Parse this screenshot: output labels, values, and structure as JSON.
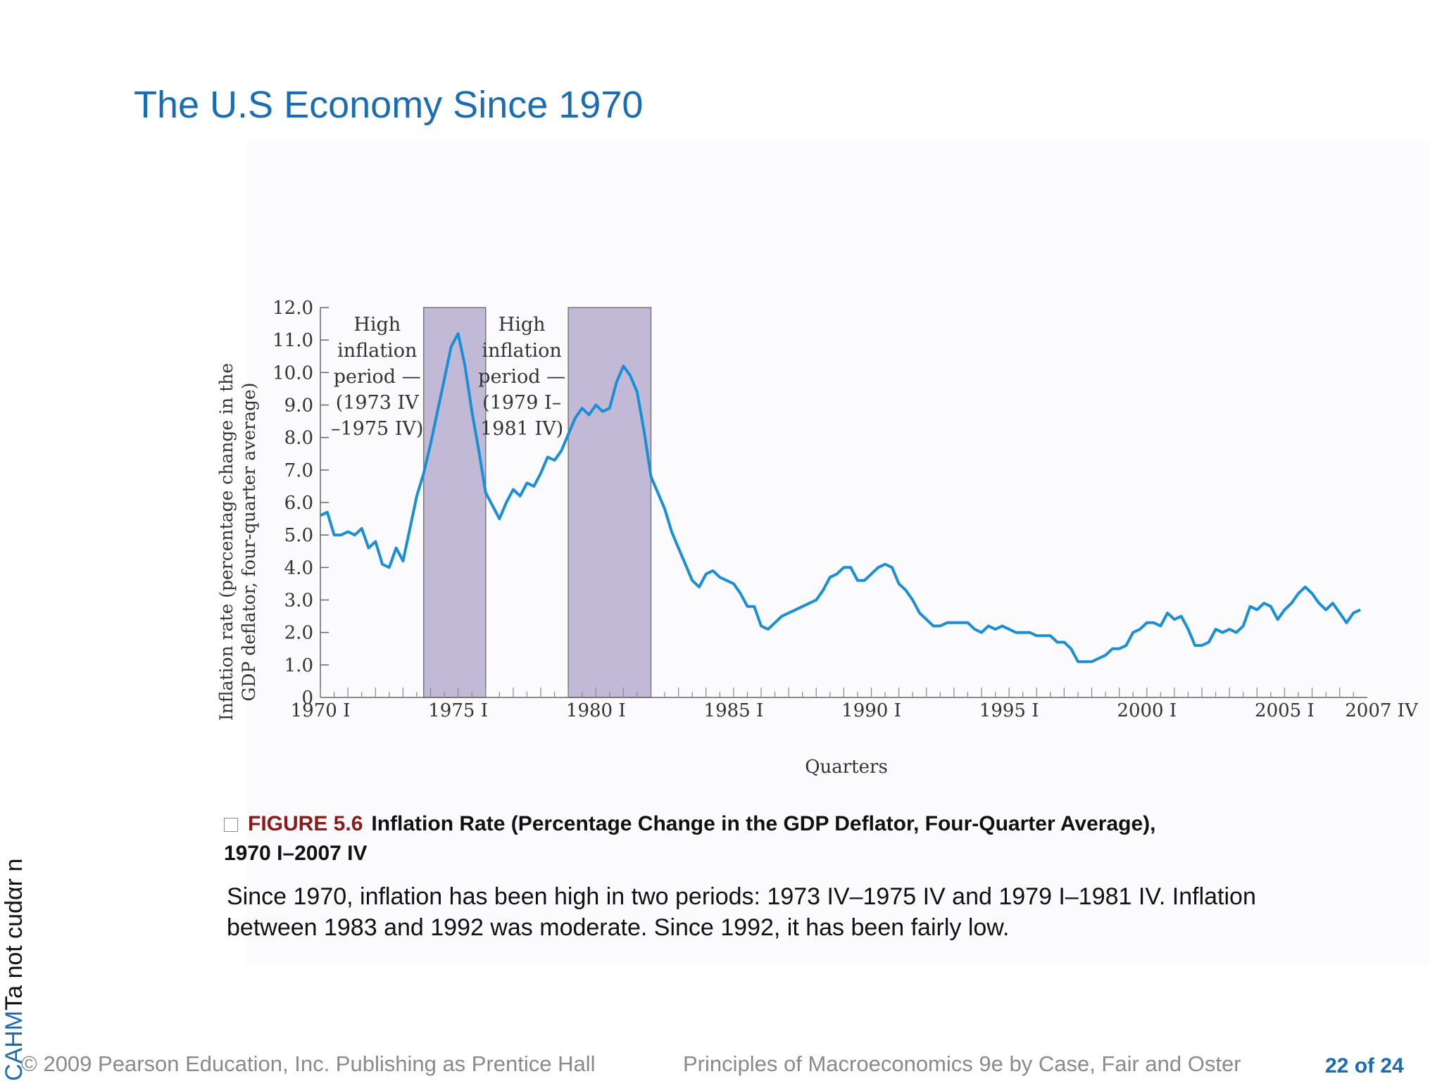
{
  "slide": {
    "title": "The U.S Economy Since 1970"
  },
  "caption": {
    "figure_number": "FIGURE 5.6",
    "figure_title": "Inflation Rate (Percentage Change in the GDP Deflator, Four-Quarter Average),",
    "figure_title_line2": "1970 I–2007 IV",
    "description_line1": "Since 1970, inflation has been high in two periods: 1973 IV–1975 IV and 1979 I–1981 IV. Inflation",
    "description_line2": "between 1983 and 1992 was moderate. Since 1992, it has been fairly low."
  },
  "sidebar": {
    "text_blue": "CAHM",
    "text_black": "Ta  not cudαr n"
  },
  "footer": {
    "copyright": "© 2009 Pearson Education, Inc. Publishing as Prentice Hall",
    "book": "Principles of Macroeconomics 9e by Case, Fair and Oster",
    "page": "22 of 24"
  },
  "colors": {
    "title": "#1a6cb3",
    "line": "#1a8fd6",
    "shade": "#c2b9d6",
    "figure_number": "#8b1a1a"
  },
  "chart_data": {
    "type": "line",
    "xlabel": "Quarters",
    "ylabel_line1": "Inflation rate (percentage change in the",
    "ylabel_line2": "GDP deflator, four-quarter average)",
    "ylim": [
      0,
      12
    ],
    "xlim": [
      1970.0,
      2007.75
    ],
    "y_ticks": [
      "0",
      "1.0",
      "2.0",
      "3.0",
      "4.0",
      "5.0",
      "6.0",
      "7.0",
      "8.0",
      "9.0",
      "10.0",
      "11.0",
      "12.0"
    ],
    "x_ticks": [
      {
        "value": 1970.0,
        "label": "1970 I"
      },
      {
        "value": 1975.0,
        "label": "1975 I"
      },
      {
        "value": 1980.0,
        "label": "1980 I"
      },
      {
        "value": 1985.0,
        "label": "1985 I"
      },
      {
        "value": 1990.0,
        "label": "1990 I"
      },
      {
        "value": 1995.0,
        "label": "1995 I"
      },
      {
        "value": 2000.0,
        "label": "2000 I"
      },
      {
        "value": 2005.0,
        "label": "2005 I"
      },
      {
        "value": 2007.75,
        "label": "2007 IV"
      }
    ],
    "shaded_periods": [
      {
        "start": 1973.75,
        "end": 1976.0,
        "label": [
          "High",
          "inflation",
          "period —",
          "(1973 IV",
          "–1975 IV)"
        ]
      },
      {
        "start": 1979.0,
        "end": 1982.0,
        "label": [
          "High",
          "inflation",
          "period —",
          "(1979 I–",
          "1981 IV)"
        ]
      }
    ],
    "series": [
      {
        "values": [
          [
            1970.0,
            5.6
          ],
          [
            1970.25,
            5.7
          ],
          [
            1970.5,
            5.0
          ],
          [
            1970.75,
            5.0
          ],
          [
            1971.0,
            5.1
          ],
          [
            1971.25,
            5.0
          ],
          [
            1971.5,
            5.2
          ],
          [
            1971.75,
            4.6
          ],
          [
            1972.0,
            4.8
          ],
          [
            1972.25,
            4.1
          ],
          [
            1972.5,
            4.0
          ],
          [
            1972.75,
            4.6
          ],
          [
            1973.0,
            4.2
          ],
          [
            1973.25,
            5.2
          ],
          [
            1973.5,
            6.2
          ],
          [
            1973.75,
            6.9
          ],
          [
            1974.0,
            7.8
          ],
          [
            1974.25,
            8.8
          ],
          [
            1974.5,
            9.8
          ],
          [
            1974.75,
            10.8
          ],
          [
            1975.0,
            11.2
          ],
          [
            1975.25,
            10.2
          ],
          [
            1975.5,
            8.8
          ],
          [
            1975.75,
            7.6
          ],
          [
            1976.0,
            6.3
          ],
          [
            1976.25,
            5.9
          ],
          [
            1976.5,
            5.5
          ],
          [
            1976.75,
            6.0
          ],
          [
            1977.0,
            6.4
          ],
          [
            1977.25,
            6.2
          ],
          [
            1977.5,
            6.6
          ],
          [
            1977.75,
            6.5
          ],
          [
            1978.0,
            6.9
          ],
          [
            1978.25,
            7.4
          ],
          [
            1978.5,
            7.3
          ],
          [
            1978.75,
            7.6
          ],
          [
            1979.0,
            8.1
          ],
          [
            1979.25,
            8.6
          ],
          [
            1979.5,
            8.9
          ],
          [
            1979.75,
            8.7
          ],
          [
            1980.0,
            9.0
          ],
          [
            1980.25,
            8.8
          ],
          [
            1980.5,
            8.9
          ],
          [
            1980.75,
            9.7
          ],
          [
            1981.0,
            10.2
          ],
          [
            1981.25,
            9.9
          ],
          [
            1981.5,
            9.4
          ],
          [
            1981.75,
            8.2
          ],
          [
            1982.0,
            6.8
          ],
          [
            1982.25,
            6.3
          ],
          [
            1982.5,
            5.8
          ],
          [
            1982.75,
            5.1
          ],
          [
            1983.0,
            4.6
          ],
          [
            1983.25,
            4.1
          ],
          [
            1983.5,
            3.6
          ],
          [
            1983.75,
            3.4
          ],
          [
            1984.0,
            3.8
          ],
          [
            1984.25,
            3.9
          ],
          [
            1984.5,
            3.7
          ],
          [
            1984.75,
            3.6
          ],
          [
            1985.0,
            3.5
          ],
          [
            1985.25,
            3.2
          ],
          [
            1985.5,
            2.8
          ],
          [
            1985.75,
            2.8
          ],
          [
            1986.0,
            2.2
          ],
          [
            1986.25,
            2.1
          ],
          [
            1986.5,
            2.3
          ],
          [
            1986.75,
            2.5
          ],
          [
            1987.0,
            2.6
          ],
          [
            1987.25,
            2.7
          ],
          [
            1987.5,
            2.8
          ],
          [
            1987.75,
            2.9
          ],
          [
            1988.0,
            3.0
          ],
          [
            1988.25,
            3.3
          ],
          [
            1988.5,
            3.7
          ],
          [
            1988.75,
            3.8
          ],
          [
            1989.0,
            4.0
          ],
          [
            1989.25,
            4.0
          ],
          [
            1989.5,
            3.6
          ],
          [
            1989.75,
            3.6
          ],
          [
            1990.0,
            3.8
          ],
          [
            1990.25,
            4.0
          ],
          [
            1990.5,
            4.1
          ],
          [
            1990.75,
            4.0
          ],
          [
            1991.0,
            3.5
          ],
          [
            1991.25,
            3.3
          ],
          [
            1991.5,
            3.0
          ],
          [
            1991.75,
            2.6
          ],
          [
            1992.0,
            2.4
          ],
          [
            1992.25,
            2.2
          ],
          [
            1992.5,
            2.2
          ],
          [
            1992.75,
            2.3
          ],
          [
            1993.0,
            2.3
          ],
          [
            1993.25,
            2.3
          ],
          [
            1993.5,
            2.3
          ],
          [
            1993.75,
            2.1
          ],
          [
            1994.0,
            2.0
          ],
          [
            1994.25,
            2.2
          ],
          [
            1994.5,
            2.1
          ],
          [
            1994.75,
            2.2
          ],
          [
            1995.0,
            2.1
          ],
          [
            1995.25,
            2.0
          ],
          [
            1995.5,
            2.0
          ],
          [
            1995.75,
            2.0
          ],
          [
            1996.0,
            1.9
          ],
          [
            1996.25,
            1.9
          ],
          [
            1996.5,
            1.9
          ],
          [
            1996.75,
            1.7
          ],
          [
            1997.0,
            1.7
          ],
          [
            1997.25,
            1.5
          ],
          [
            1997.5,
            1.1
          ],
          [
            1997.75,
            1.1
          ],
          [
            1998.0,
            1.1
          ],
          [
            1998.25,
            1.2
          ],
          [
            1998.5,
            1.3
          ],
          [
            1998.75,
            1.5
          ],
          [
            1999.0,
            1.5
          ],
          [
            1999.25,
            1.6
          ],
          [
            1999.5,
            2.0
          ],
          [
            1999.75,
            2.1
          ],
          [
            2000.0,
            2.3
          ],
          [
            2000.25,
            2.3
          ],
          [
            2000.5,
            2.2
          ],
          [
            2000.75,
            2.6
          ],
          [
            2001.0,
            2.4
          ],
          [
            2001.25,
            2.5
          ],
          [
            2001.5,
            2.1
          ],
          [
            2001.75,
            1.6
          ],
          [
            2002.0,
            1.6
          ],
          [
            2002.25,
            1.7
          ],
          [
            2002.5,
            2.1
          ],
          [
            2002.75,
            2.0
          ],
          [
            2003.0,
            2.1
          ],
          [
            2003.25,
            2.0
          ],
          [
            2003.5,
            2.2
          ],
          [
            2003.75,
            2.8
          ],
          [
            2004.0,
            2.7
          ],
          [
            2004.25,
            2.9
          ],
          [
            2004.5,
            2.8
          ],
          [
            2004.75,
            2.4
          ],
          [
            2005.0,
            2.7
          ],
          [
            2005.25,
            2.9
          ],
          [
            2005.5,
            3.2
          ],
          [
            2005.75,
            3.4
          ],
          [
            2006.0,
            3.2
          ],
          [
            2006.25,
            2.9
          ],
          [
            2006.5,
            2.7
          ],
          [
            2006.75,
            2.9
          ],
          [
            2007.0,
            2.6
          ],
          [
            2007.25,
            2.3
          ],
          [
            2007.5,
            2.6
          ],
          [
            2007.75,
            2.7
          ]
        ]
      }
    ]
  }
}
